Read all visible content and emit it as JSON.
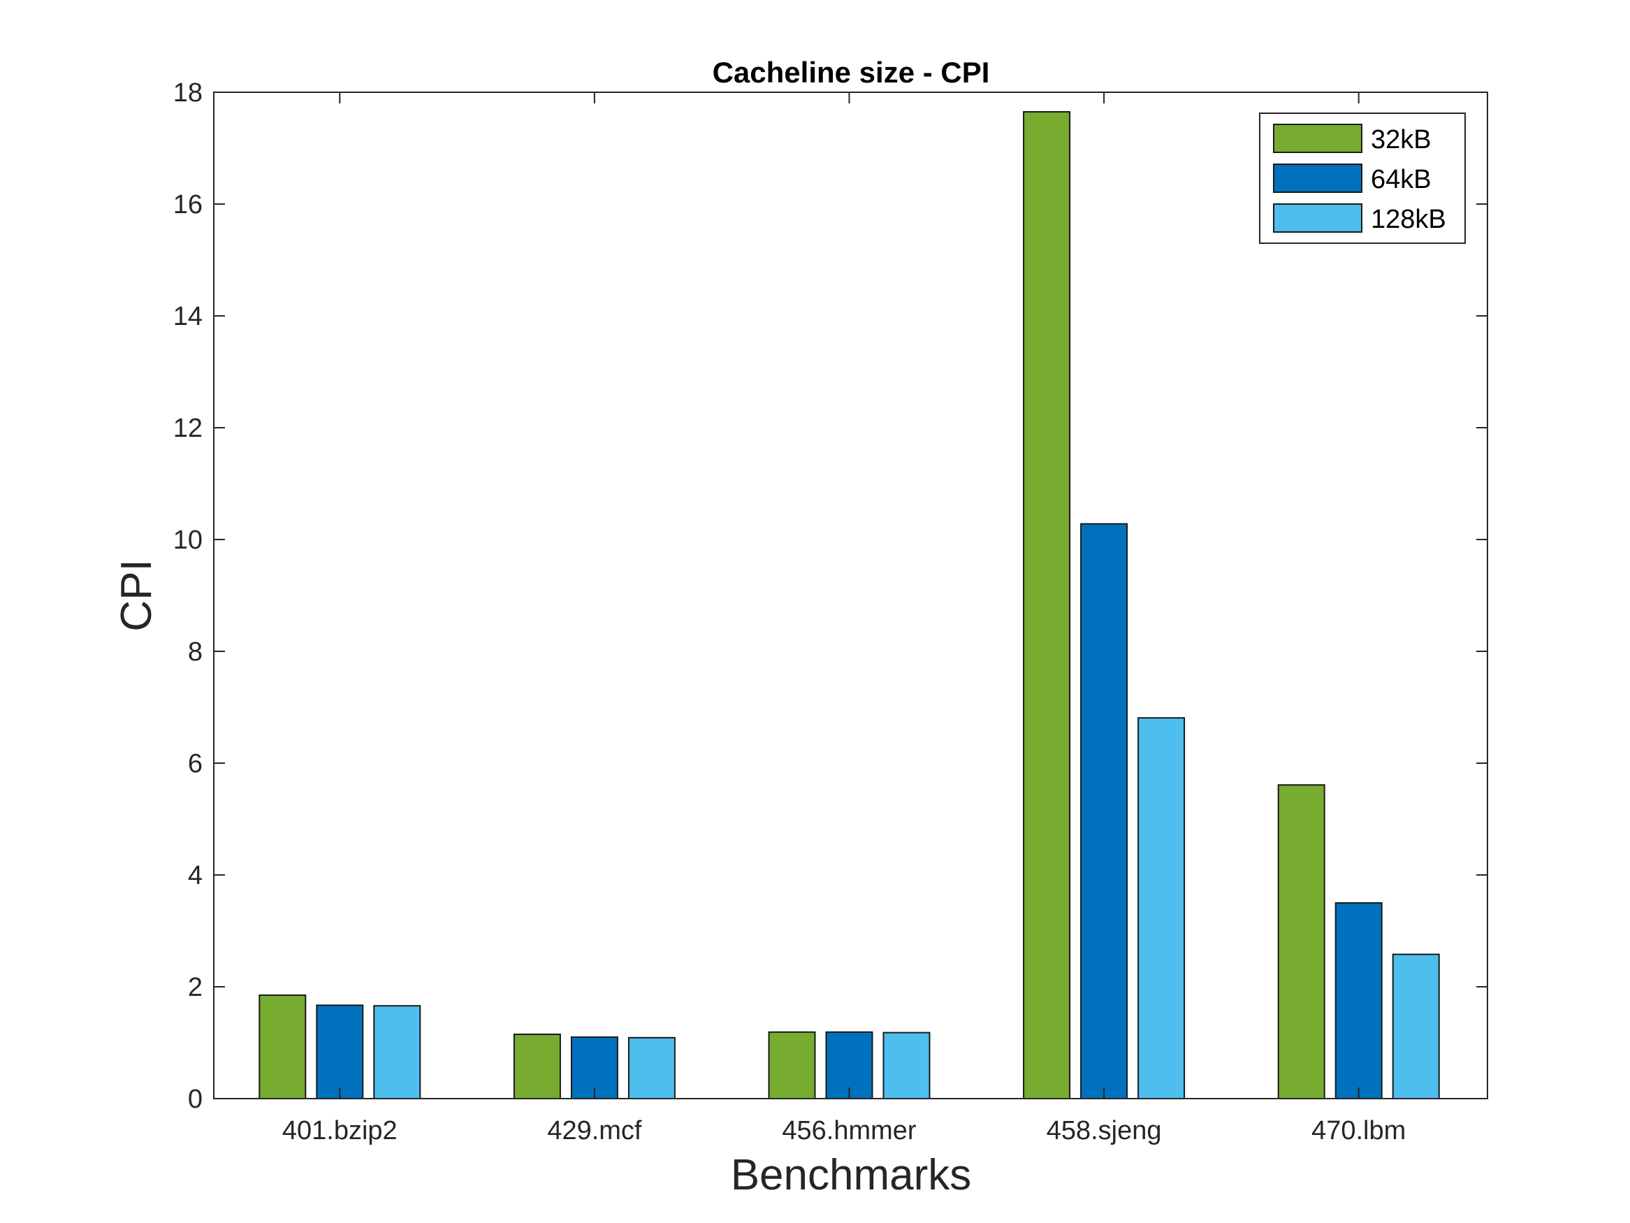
{
  "chart_data": {
    "type": "bar",
    "title": "Cacheline size - CPI",
    "xlabel": "Benchmarks",
    "ylabel": "CPI",
    "ylim": [
      0,
      18
    ],
    "yticks": [
      0,
      2,
      4,
      6,
      8,
      10,
      12,
      14,
      16,
      18
    ],
    "grid": false,
    "legend_position": "top-right",
    "categories": [
      "401.bzip2",
      "429.mcf",
      "456.hmmer",
      "458.sjeng",
      "470.lbm"
    ],
    "series": [
      {
        "name": "32kB",
        "color": "#77AC30",
        "values": [
          1.85,
          1.15,
          1.19,
          17.65,
          5.61
        ]
      },
      {
        "name": "64kB",
        "color": "#0072BD",
        "values": [
          1.67,
          1.1,
          1.19,
          10.28,
          3.5
        ]
      },
      {
        "name": "128kB",
        "color": "#4DBEEE",
        "values": [
          1.66,
          1.09,
          1.18,
          6.81,
          2.58
        ]
      }
    ]
  }
}
